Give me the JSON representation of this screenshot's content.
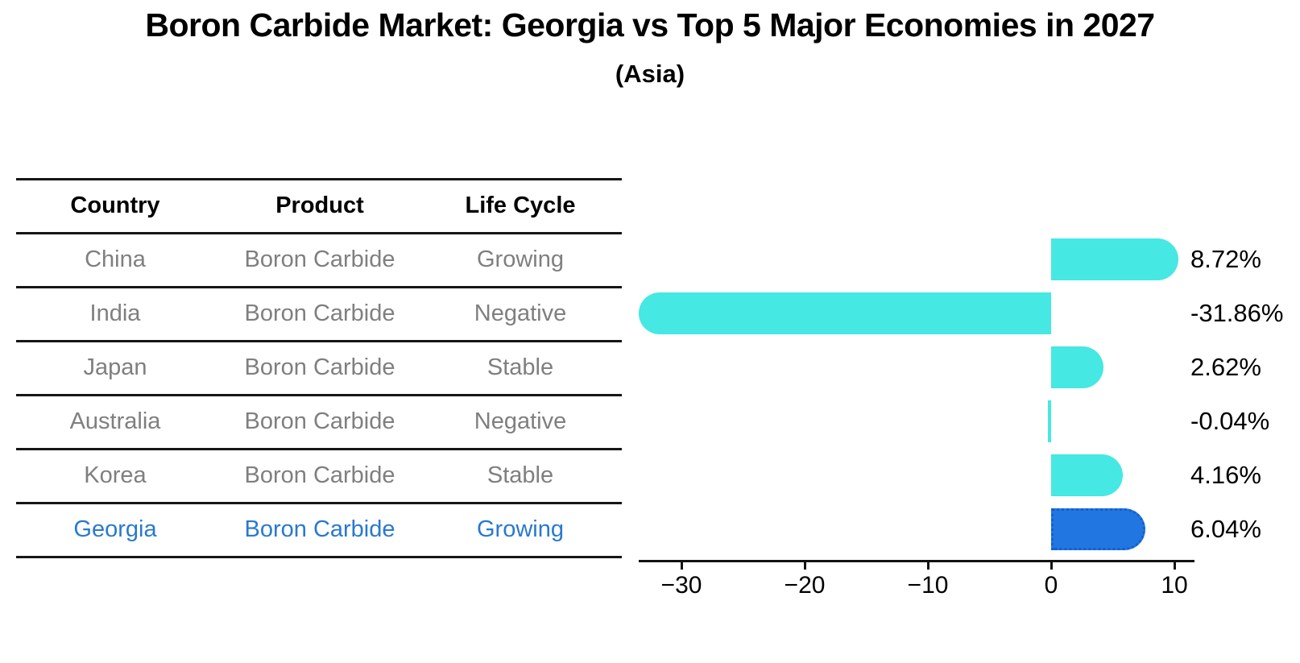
{
  "header": {
    "title": "Boron Carbide Market: Georgia vs Top 5 Major Economies in 2027",
    "subtitle": "(Asia)"
  },
  "table": {
    "headers": [
      "Country",
      "Product",
      "Life Cycle"
    ],
    "rows": [
      {
        "country": "China",
        "product": "Boron Carbide",
        "life_cycle": "Growing"
      },
      {
        "country": "India",
        "product": "Boron Carbide",
        "life_cycle": "Negative"
      },
      {
        "country": "Japan",
        "product": "Boron Carbide",
        "life_cycle": "Stable"
      },
      {
        "country": "Australia",
        "product": "Boron Carbide",
        "life_cycle": "Negative"
      },
      {
        "country": "Korea",
        "product": "Boron Carbide",
        "life_cycle": "Stable"
      },
      {
        "country": "Georgia",
        "product": "Boron Carbide",
        "life_cycle": "Growing"
      }
    ]
  },
  "chart_data": {
    "type": "bar",
    "orientation": "horizontal",
    "title": "Boron Carbide Market: Georgia vs Top 5 Major Economies in 2027",
    "subtitle": "(Asia)",
    "categories": [
      "China",
      "India",
      "Japan",
      "Australia",
      "Korea",
      "Georgia"
    ],
    "values": [
      8.72,
      -31.86,
      2.62,
      -0.04,
      4.16,
      6.04
    ],
    "value_labels": [
      "8.72%",
      "-31.86%",
      "2.62%",
      "-0.04%",
      "4.16%",
      "6.04%"
    ],
    "units": "percent",
    "highlight_index": 5,
    "highlight_category": "Georgia",
    "xticks": [
      -30,
      -20,
      -10,
      0,
      10
    ],
    "xtick_labels": [
      "−30",
      "−20",
      "−10",
      "0",
      "10"
    ],
    "xlim": [
      -33.9,
      10.8
    ],
    "grid": false,
    "legend": false,
    "colors": {
      "bar": "#45E8E2",
      "highlight_bar": "#2176E2",
      "highlight_border": "#155FCE",
      "highlight_text": "#2979CE",
      "table_text": "#7f7f7f",
      "axis": "#111111"
    }
  }
}
